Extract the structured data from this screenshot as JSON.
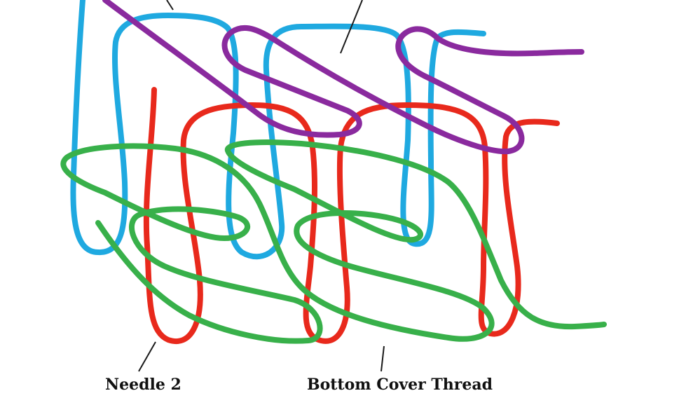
{
  "labels": {
    "needle_2": "Needle 2",
    "bottom_cover_thread": "Bottom Cover Thread"
  },
  "threads": [
    {
      "id": "needle-1",
      "color": "#1fa9e0"
    },
    {
      "id": "needle-2",
      "color": "#e8291c"
    },
    {
      "id": "top-cover",
      "color": "#8a2a9e"
    },
    {
      "id": "bottom-cover",
      "color": "#38b04a"
    }
  ]
}
